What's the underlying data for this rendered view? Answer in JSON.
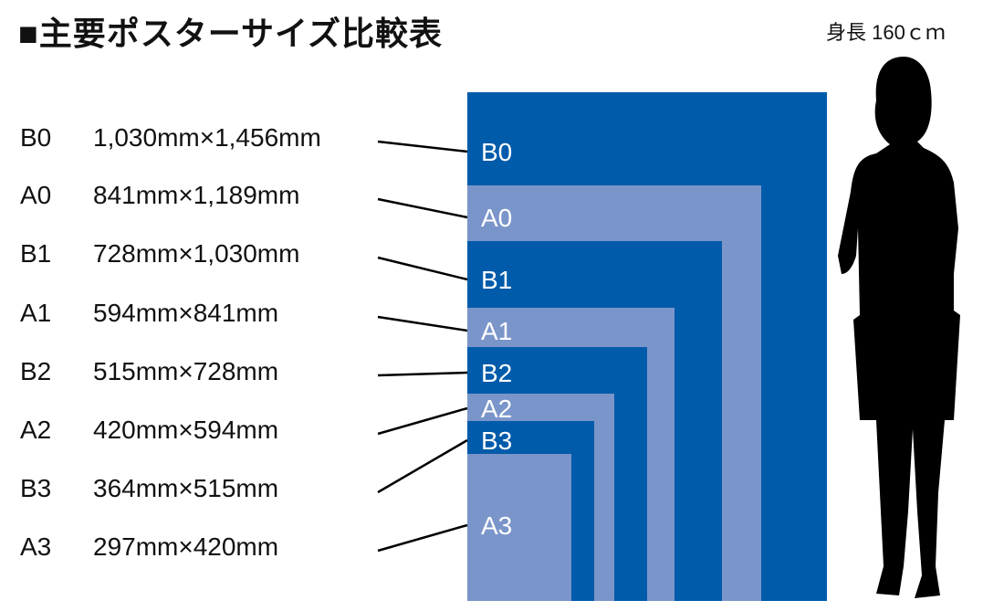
{
  "title": "■主要ポスターサイズ比較表",
  "height_label": "身長 160ｃｍ",
  "colors": {
    "b_series": "#005BAA",
    "a_series": "#7A95CA"
  },
  "sizes": [
    {
      "name": "B0",
      "dims": "1,030mm×1,456mm"
    },
    {
      "name": "A0",
      "dims": "841mm×1,189mm"
    },
    {
      "name": "B1",
      "dims": "728mm×1,030mm"
    },
    {
      "name": "A1",
      "dims": "594mm×841mm"
    },
    {
      "name": "B2",
      "dims": "515mm×728mm"
    },
    {
      "name": "A2",
      "dims": "420mm×594mm"
    },
    {
      "name": "B3",
      "dims": "364mm×515mm"
    },
    {
      "name": "A3",
      "dims": "297mm×420mm"
    }
  ],
  "silhouette": "woman-silhouette"
}
